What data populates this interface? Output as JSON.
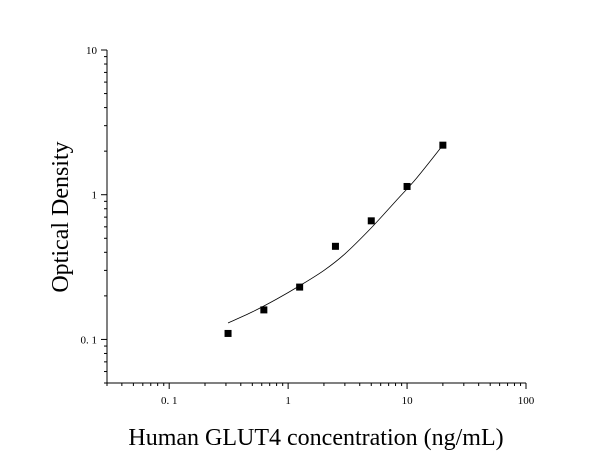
{
  "chart_data": {
    "type": "scatter",
    "title": "",
    "xlabel": "Human GLUT4 concentration (ng/mL)",
    "ylabel": "Optical Density",
    "xscale": "log",
    "yscale": "log",
    "xlim": [
      0.03,
      100
    ],
    "ylim": [
      0.05,
      10
    ],
    "x_tick_values": [
      0.1,
      1,
      10,
      100
    ],
    "x_tick_labels": [
      "0. 1",
      "1",
      "10",
      "100"
    ],
    "y_tick_values": [
      0.1,
      1,
      10
    ],
    "y_tick_labels": [
      "0. 1",
      "1",
      "10"
    ],
    "grid": false,
    "legend": "none",
    "series": [
      {
        "marker": "square",
        "color": "#000000",
        "x": [
          0.3125,
          0.625,
          1.25,
          2.5,
          5,
          10,
          20
        ],
        "y": [
          0.11,
          0.16,
          0.23,
          0.44,
          0.66,
          1.14,
          2.2
        ]
      }
    ],
    "fit_curve": {
      "color": "#000000",
      "x": [
        0.3125,
        0.5,
        0.8,
        1.25,
        2,
        3,
        5,
        8,
        12,
        20
      ],
      "y": [
        0.13,
        0.155,
        0.19,
        0.235,
        0.3,
        0.39,
        0.59,
        0.9,
        1.3,
        2.2
      ]
    }
  }
}
